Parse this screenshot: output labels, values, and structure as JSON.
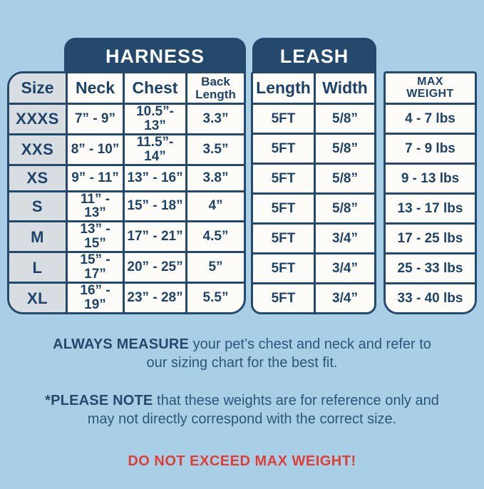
{
  "colors": {
    "background": "#a9cfe6",
    "navy": "#24496d",
    "table_text": "#1d4468",
    "size_column_bg": "#d7dde1",
    "cell_bg": "#fdfcf9",
    "warning_red": "#df3e37"
  },
  "tabs": {
    "harness": "HARNESS",
    "leash": "LEASH"
  },
  "headers": {
    "size": "Size",
    "neck": "Neck",
    "chest": "Chest",
    "back_length_line1": "Back",
    "back_length_line2": "Length",
    "length": "Length",
    "width": "Width",
    "max_weight_line1": "MAX",
    "max_weight_line2": "WEIGHT"
  },
  "sizes": [
    "XXXS",
    "XXS",
    "XS",
    "S",
    "M",
    "L",
    "XL"
  ],
  "harness": {
    "neck": [
      "7” - 9”",
      "8” - 10”",
      "9” - 11”",
      "11” - 13”",
      "13” - 15”",
      "15” - 17”",
      "16” - 19”"
    ],
    "chest": [
      "10.5”- 13”",
      "11.5”- 14”",
      "13” - 16”",
      "15” - 18”",
      "17” - 21”",
      "20” - 25”",
      "23” - 28”"
    ],
    "back_length": [
      "3.3”",
      "3.5”",
      "3.8”",
      "4”",
      "4.5”",
      "5”",
      "5.5”"
    ]
  },
  "leash": {
    "length": [
      "5FT",
      "5FT",
      "5FT",
      "5FT",
      "5FT",
      "5FT",
      "5FT"
    ],
    "width": [
      "5/8”",
      "5/8”",
      "5/8”",
      "5/8”",
      "3/4”",
      "3/4”",
      "3/4”"
    ]
  },
  "max_weight": {
    "values": [
      "4 - 7 lbs",
      "7 - 9 lbs",
      "9 - 13 lbs",
      "13 - 17 lbs",
      "17 - 25 lbs",
      "25 - 33 lbs",
      "33 - 40 lbs"
    ]
  },
  "notes": {
    "measure_bold": "ALWAYS MEASURE",
    "measure_rest": " your pet’s chest and neck and refer to our sizing chart for the best fit.",
    "note_bold": "*PLEASE NOTE",
    "note_rest": " that these weights are for reference only and may not directly correspond with the correct size.",
    "warning": "DO NOT EXCEED MAX WEIGHT!"
  }
}
